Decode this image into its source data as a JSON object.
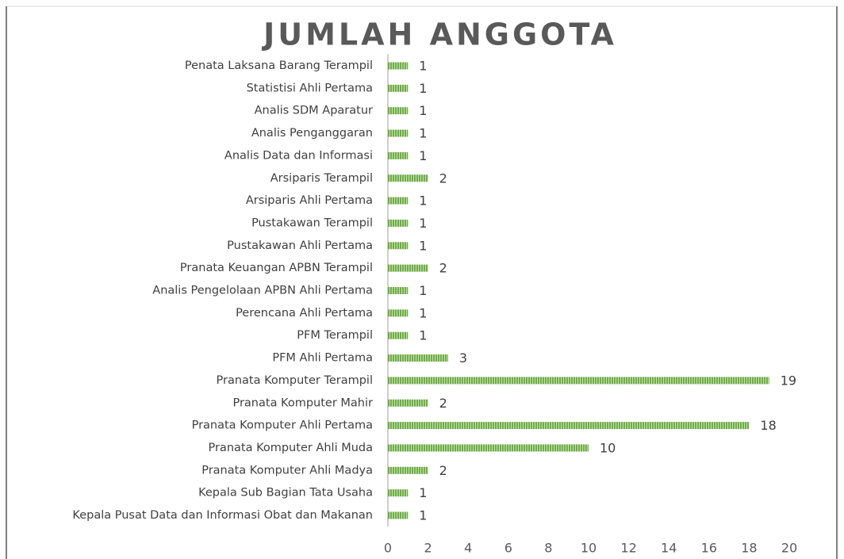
{
  "chart_data": {
    "type": "bar",
    "orientation": "horizontal",
    "title": "JUMLAH ANGGOTA",
    "categories": [
      "Penata Laksana Barang Terampil",
      "Statistisi Ahli Pertama",
      "Analis SDM Aparatur",
      "Analis Penganggaran",
      "Analis Data dan Informasi",
      "Arsiparis Terampil",
      "Arsiparis Ahli Pertama",
      "Pustakawan Terampil",
      "Pustakawan Ahli Pertama",
      "Pranata Keuangan APBN Terampil",
      "Analis Pengelolaan APBN Ahli Pertama",
      "Perencana Ahli Pertama",
      "PFM Terampil",
      "PFM Ahli Pertama",
      "Pranata Komputer Terampil",
      "Pranata Komputer Mahir",
      "Pranata Komputer Ahli Pertama",
      "Pranata Komputer Ahli Muda",
      "Pranata Komputer Ahli Madya",
      "Kepala Sub Bagian Tata Usaha",
      "Kepala Pusat Data dan Informasi Obat dan Makanan"
    ],
    "values": [
      1,
      1,
      1,
      1,
      1,
      2,
      1,
      1,
      1,
      2,
      1,
      1,
      1,
      3,
      19,
      2,
      18,
      10,
      2,
      1,
      1
    ],
    "color": "#70ad47",
    "xlim": [
      0,
      20
    ],
    "xticks": [
      0,
      2,
      4,
      6,
      8,
      10,
      12,
      14,
      16,
      18,
      20
    ],
    "grid": false
  }
}
